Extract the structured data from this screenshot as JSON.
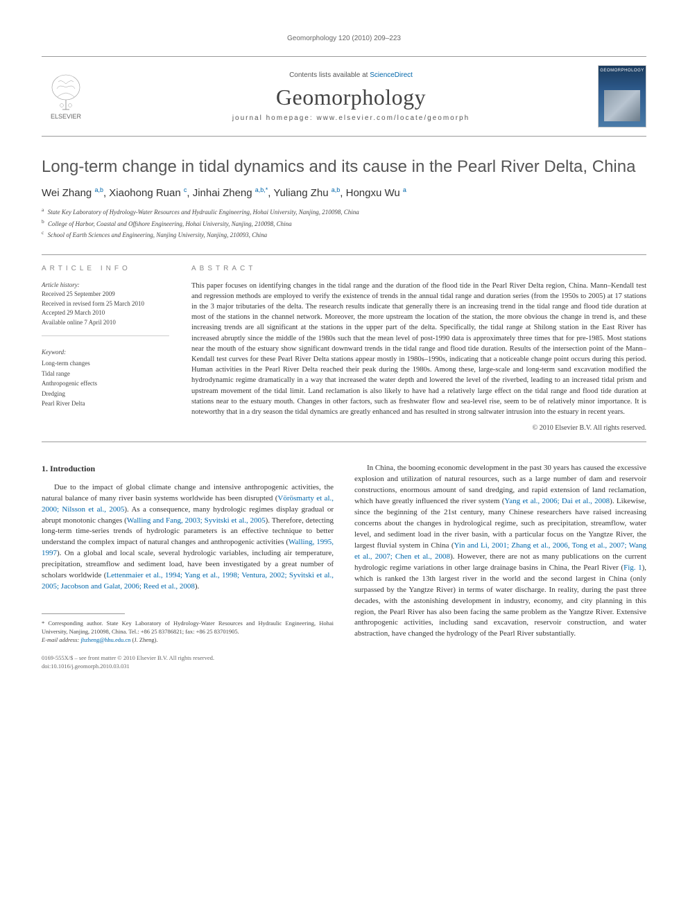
{
  "running_header": "Geomorphology 120 (2010) 209–223",
  "masthead": {
    "contents_prefix": "Contents lists available at ",
    "contents_link": "ScienceDirect",
    "journal_name": "Geomorphology",
    "homepage_label": "journal homepage: ",
    "homepage_url": "www.elsevier.com/locate/geomorph",
    "publisher": "ELSEVIER",
    "cover_label": "GEOMORPHOLOGY"
  },
  "article": {
    "title": "Long-term change in tidal dynamics and its cause in the Pearl River Delta, China",
    "authors_html": "Wei Zhang <sup>a,b</sup>, Xiaohong Ruan <sup>c</sup>, Jinhai Zheng <sup>a,b,*</sup>, Yuliang Zhu <sup>a,b</sup>, Hongxu Wu <sup>a</sup>",
    "affiliations": [
      {
        "sup": "a",
        "text": "State Key Laboratory of Hydrology-Water Resources and Hydraulic Engineering, Hohai University, Nanjing, 210098, China"
      },
      {
        "sup": "b",
        "text": "College of Harbor, Coastal and Offshore Engineering, Hohai University, Nanjing, 210098, China"
      },
      {
        "sup": "c",
        "text": "School of Earth Sciences and Engineering, Nanjing University, Nanjing, 210093, China"
      }
    ]
  },
  "info": {
    "heading": "article info",
    "history_label": "Article history:",
    "history": [
      "Received 25 September 2009",
      "Received in revised form 25 March 2010",
      "Accepted 29 March 2010",
      "Available online 7 April 2010"
    ],
    "keywords_label": "Keyword:",
    "keywords": [
      "Long-term changes",
      "Tidal range",
      "Anthropogenic effects",
      "Dredging",
      "Pearl River Delta"
    ]
  },
  "abstract": {
    "heading": "abstract",
    "text": "This paper focuses on identifying changes in the tidal range and the duration of the flood tide in the Pearl River Delta region, China. Mann–Kendall test and regression methods are employed to verify the existence of trends in the annual tidal range and duration series (from the 1950s to 2005) at 17 stations in the 3 major tributaries of the delta. The research results indicate that generally there is an increasing trend in the tidal range and flood tide duration at most of the stations in the channel network. Moreover, the more upstream the location of the station, the more obvious the change in trend is, and these increasing trends are all significant at the stations in the upper part of the delta. Specifically, the tidal range at Shilong station in the East River has increased abruptly since the middle of the 1980s such that the mean level of post-1990 data is approximately three times that for pre-1985. Most stations near the mouth of the estuary show significant downward trends in the tidal range and flood tide duration. Results of the intersection point of the Mann–Kendall test curves for these Pearl River Delta stations appear mostly in 1980s–1990s, indicating that a noticeable change point occurs during this period. Human activities in the Pearl River Delta reached their peak during the 1980s. Among these, large-scale and long-term sand excavation modified the hydrodynamic regime dramatically in a way that increased the water depth and lowered the level of the riverbed, leading to an increased tidal prism and upstream movement of the tidal limit. Land reclamation is also likely to have had a relatively large effect on the tidal range and flood tide duration at stations near to the estuary mouth. Changes in other factors, such as freshwater flow and sea-level rise, seem to be of relatively minor importance. It is noteworthy that in a dry season the tidal dynamics are greatly enhanced and has resulted in strong saltwater intrusion into the estuary in recent years.",
    "copyright": "© 2010 Elsevier B.V. All rights reserved."
  },
  "body": {
    "section_num": "1.",
    "section_title": "Introduction",
    "col1_p1": "Due to the impact of global climate change and intensive anthropogenic activities, the natural balance of many river basin systems worldwide has been disrupted (Vörösmarty et al., 2000; Nilsson et al., 2005). As a consequence, many hydrologic regimes display gradual or abrupt monotonic changes (Walling and Fang, 2003; Syvitski et al., 2005). Therefore, detecting long-term time-series trends of hydrologic parameters is an effective technique to better understand the complex impact of natural changes and anthropogenic activities (Walling, 1995, 1997). On a global and local scale, several hydrologic variables, including air temperature, precipitation, streamflow and sediment load, have been investigated by a great number of scholars worldwide (Lettenmaier et al., 1994; Yang et al., 1998; Ventura, 2002; Syvitski et al., 2005; Jacobson and Galat, 2006; Reed et al., 2008).",
    "col2_p1": "In China, the booming economic development in the past 30 years has caused the excessive explosion and utilization of natural resources, such as a large number of dam and reservoir constructions, enormous amount of sand dredging, and rapid extension of land reclamation, which have greatly influenced the river system (Yang et al., 2006; Dai et al., 2008). Likewise, since the beginning of the 21st century, many Chinese researchers have raised increasing concerns about the changes in hydrological regime, such as precipitation, streamflow, water level, and sediment load in the river basin, with a particular focus on the Yangtze River, the largest fluvial system in China (Yin and Li, 2001; Zhang et al., 2006, Tong et al., 2007; Wang et al., 2007; Chen et al., 2008). However, there are not as many publications on the current hydrologic regime variations in other large drainage basins in China, the Pearl River (Fig. 1), which is ranked the 13th largest river in the world and the second largest in China (only surpassed by the Yangtze River) in terms of water discharge. In reality, during the past three decades, with the astonishing development in industry, economy, and city planning in this region, the Pearl River has also been facing the same problem as the Yangtze River. Extensive anthropogenic activities, including sand excavation, reservoir construction, and water abstraction, have changed the hydrology of the Pearl River substantially.",
    "refs_col1": [
      "Vörösmarty et al., 2000; Nilsson et al., 2005",
      "Walling and Fang, 2003; Syvitski et al., 2005",
      "Walling, 1995, 1997",
      "Lettenmaier et al., 1994; Yang et al., 1998; Ventura, 2002; Syvitski et al., 2005; Jacobson and Galat, 2006; Reed et al., 2008"
    ],
    "refs_col2": [
      "Yang et al., 2006; Dai et al., 2008",
      "Yin and Li, 2001; Zhang et al., 2006, Tong et al., 2007; Wang et al., 2007; Chen et al., 2008",
      "Fig. 1"
    ]
  },
  "footnote": {
    "corr_text": "* Corresponding author. State Key Laboratory of Hydrology-Water Resources and Hydraulic Engineering, Hohai University, Nanjing, 210098, China. Tel.: +86 25 83786821; fax: +86 25 83701905.",
    "email_label": "E-mail address: ",
    "email": "jhzheng@hhu.edu.cn",
    "email_who": " (J. Zheng)."
  },
  "bottom": {
    "line1": "0169-555X/$ – see front matter © 2010 Elsevier B.V. All rights reserved.",
    "doi": "doi:10.1016/j.geomorph.2010.03.031"
  },
  "colors": {
    "link": "#0066aa",
    "heading_gray": "#888888",
    "rule": "#999999",
    "text": "#333333"
  }
}
